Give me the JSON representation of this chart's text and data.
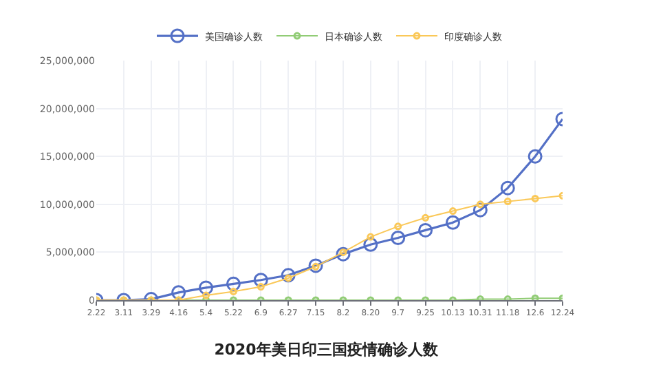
{
  "chart_data": {
    "type": "line",
    "title": "2020年美日印三国疫情确诊人数",
    "categories": [
      "2.22",
      "3.11",
      "3.29",
      "4.16",
      "5.4",
      "5.22",
      "6.9",
      "6.27",
      "7.15",
      "8.2",
      "8.20",
      "9.7",
      "9.25",
      "10.13",
      "10.31",
      "11.18",
      "12.6",
      "12.24"
    ],
    "series": [
      {
        "name": "美国确诊人数",
        "color": "#5470c6",
        "values": [
          0,
          0,
          100000,
          800000,
          1300000,
          1700000,
          2100000,
          2600000,
          3600000,
          4800000,
          5800000,
          6500000,
          7300000,
          8100000,
          9400000,
          11700000,
          15000000,
          18900000
        ]
      },
      {
        "name": "日本确诊人数",
        "color": "#91cc75",
        "values": [
          0,
          0,
          0,
          0,
          0,
          0,
          0,
          0,
          0,
          0,
          0,
          0,
          0,
          0,
          100000,
          100000,
          200000,
          200000
        ]
      },
      {
        "name": "印度确诊人数",
        "color": "#fac858",
        "values": [
          0,
          0,
          0,
          0,
          500000,
          900000,
          1400000,
          2300000,
          3500000,
          5000000,
          6600000,
          7700000,
          8600000,
          9300000,
          10000000,
          10300000,
          10600000,
          10900000
        ]
      }
    ],
    "ylim": [
      0,
      25000000
    ],
    "yticks": [
      0,
      {
        "value": 5000000,
        "label": "5,000,000"
      },
      {
        "value": 10000000,
        "label": "10,000,000"
      },
      {
        "value": 15000000,
        "label": "15,000,000"
      },
      {
        "value": 20000000,
        "label": "20,000,000"
      },
      {
        "value": 25000000,
        "label": "25,000,000"
      }
    ],
    "grid": true,
    "legend": "top",
    "marker": "circle",
    "line_style": "solid"
  }
}
